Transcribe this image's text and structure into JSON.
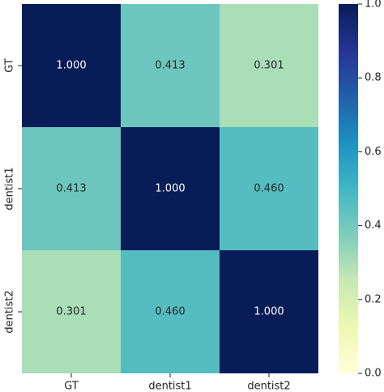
{
  "chart_data": {
    "type": "heatmap",
    "x_categories": [
      "GT",
      "dentist1",
      "dentist2"
    ],
    "y_categories": [
      "GT",
      "dentist1",
      "dentist2"
    ],
    "values": [
      [
        1.0,
        0.413,
        0.301
      ],
      [
        0.413,
        1.0,
        0.46
      ],
      [
        0.301,
        0.46,
        1.0
      ]
    ],
    "value_labels": [
      [
        "1.000",
        "0.413",
        "0.301"
      ],
      [
        "0.413",
        "1.000",
        "0.460"
      ],
      [
        "0.301",
        "0.460",
        "1.000"
      ]
    ],
    "colorscale": [
      "#ffffd9",
      "#edf8b1",
      "#c7e9b4",
      "#7fcdbb",
      "#41b6c4",
      "#1d91c0",
      "#225ea8",
      "#253494",
      "#081d58"
    ],
    "zlim": [
      0,
      1
    ],
    "zticks": [
      {
        "value": 0,
        "label": "0.0"
      },
      {
        "value": 0.2,
        "label": "0.2"
      },
      {
        "value": 0.4,
        "label": "0.4"
      },
      {
        "value": 0.6,
        "label": "0.6"
      },
      {
        "value": 0.8,
        "label": "0.8"
      },
      {
        "value": 1,
        "label": "1.0"
      }
    ]
  }
}
